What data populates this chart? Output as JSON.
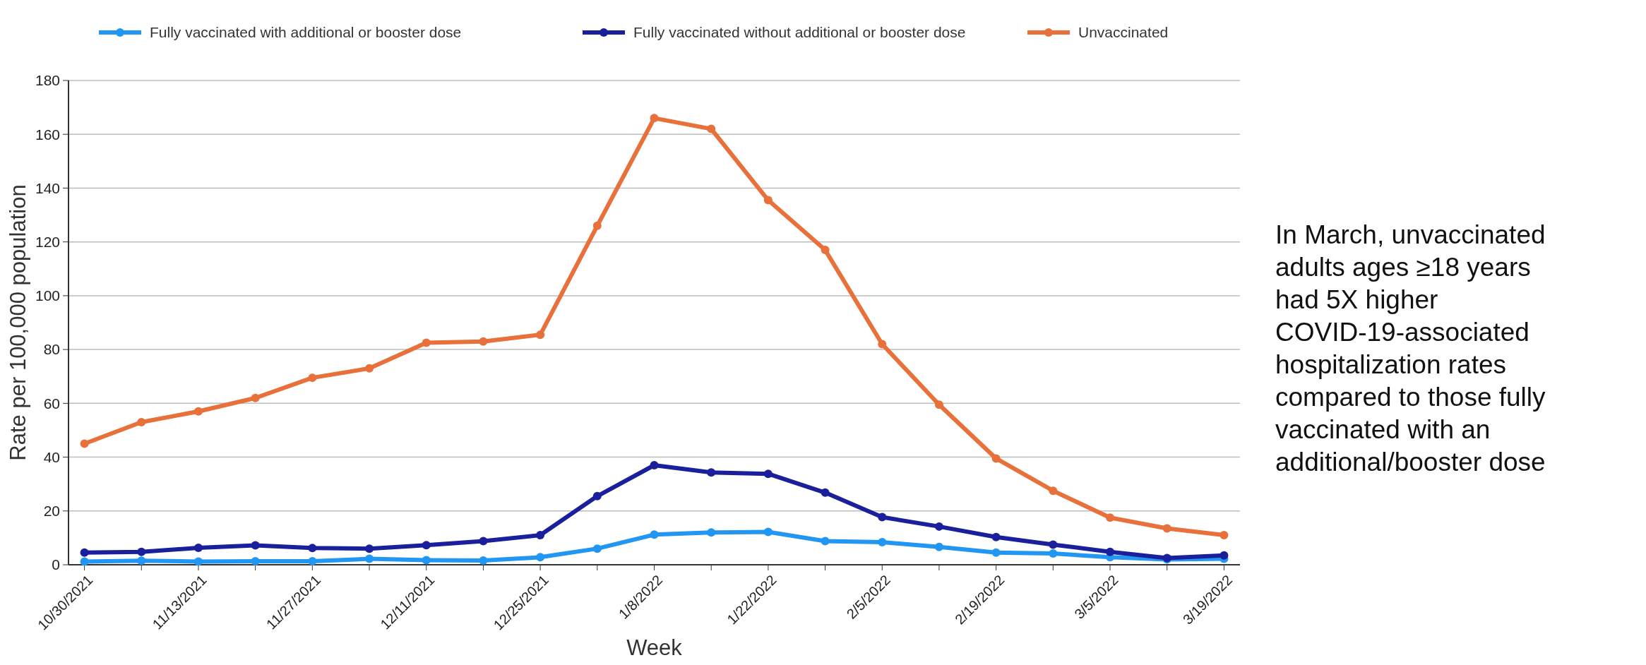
{
  "chart_data": {
    "type": "line",
    "xlabel": "Week",
    "ylabel": "Rate per 100,000 population",
    "categories": [
      "10/30/2021",
      null,
      "11/13/2021",
      null,
      "11/27/2021",
      null,
      "12/11/2021",
      null,
      "12/25/2021",
      null,
      "1/8/2022",
      null,
      "1/22/2022",
      null,
      "2/5/2022",
      null,
      "2/19/2022",
      null,
      "3/5/2022",
      null,
      "3/19/2022"
    ],
    "series": [
      {
        "name": "Fully vaccinated with additional or booster dose",
        "color": "#2196f3",
        "values": [
          1.2,
          1.5,
          1.2,
          1.3,
          1.3,
          2.2,
          1.7,
          1.6,
          2.8,
          6,
          11.2,
          12,
          12.2,
          8.8,
          8.4,
          6.6,
          4.5,
          4.2,
          2.8,
          2,
          2.2
        ]
      },
      {
        "name": "Fully vaccinated without additional or booster dose",
        "color": "#1a1f9c",
        "values": [
          4.5,
          4.8,
          6.3,
          7.2,
          6.2,
          6,
          7.3,
          8.8,
          11,
          25.5,
          37,
          34.3,
          33.8,
          26.8,
          17.7,
          14.2,
          10.3,
          7.5,
          4.8,
          2.5,
          3.5
        ]
      },
      {
        "name": "Unvaccinated",
        "color": "#e8703a",
        "values": [
          45,
          53,
          57,
          62,
          69.5,
          73,
          82.5,
          83,
          85.5,
          126,
          166,
          162,
          135.5,
          117,
          82,
          59.5,
          39.5,
          27.5,
          17.5,
          13.5,
          11
        ]
      }
    ],
    "ylim": [
      0,
      180
    ],
    "yticks": [
      0,
      20,
      40,
      60,
      80,
      100,
      120,
      140,
      160,
      180
    ],
    "grid": "y",
    "legend": "top",
    "marker": "circle",
    "line_style": "solid",
    "annotations": [
      "In March, unvaccinated adults ages ≥18 years had 5X higher COVID-19-associated hospitalization rates compared to those fully vaccinated with an additional/booster dose"
    ]
  }
}
